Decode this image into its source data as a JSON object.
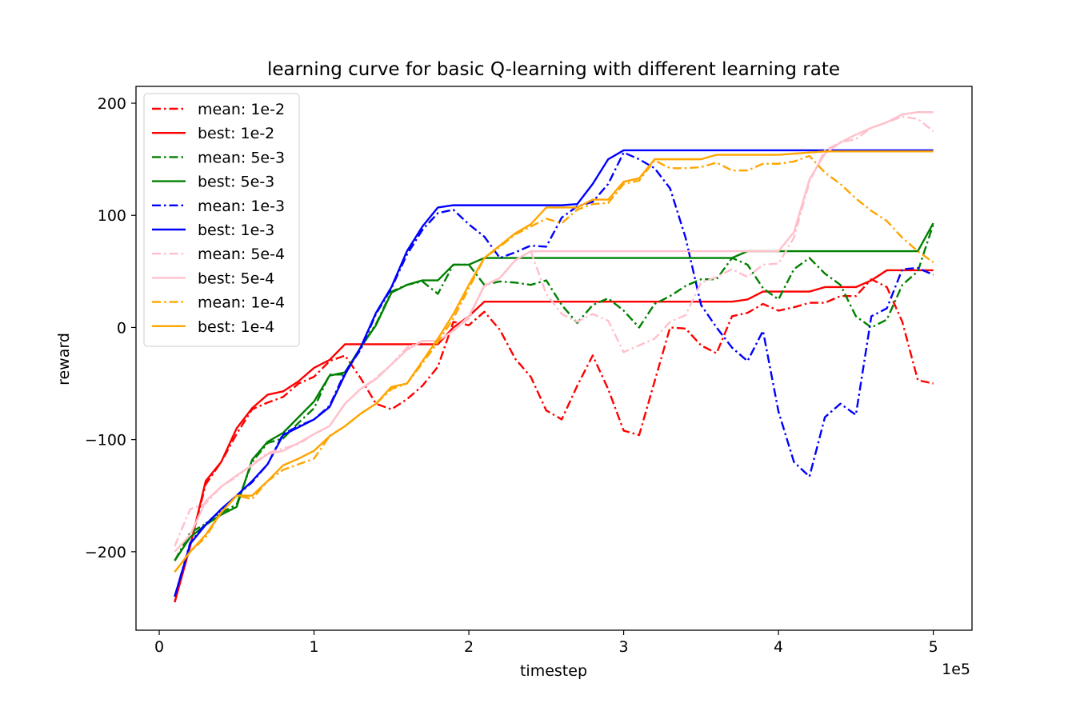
{
  "chart_data": {
    "type": "line",
    "title": "learning curve for basic Q-learning with different learning rate",
    "xlabel": "timestep",
    "ylabel": "reward",
    "x_offset_label": "1e5",
    "xlim": [
      -0.15,
      5.25
    ],
    "ylim": [
      -270,
      215
    ],
    "x_ticks": [
      0,
      1,
      2,
      3,
      4,
      5
    ],
    "x_tick_labels": [
      "0",
      "1",
      "2",
      "3",
      "4",
      "5"
    ],
    "y_ticks": [
      -200,
      -100,
      0,
      100,
      200
    ],
    "y_tick_labels": [
      "−200",
      "−100",
      "0",
      "100",
      "200"
    ],
    "grid": false,
    "legend_position": "upper-left",
    "x": [
      0.1,
      0.2,
      0.3,
      0.4,
      0.5,
      0.6,
      0.7,
      0.8,
      0.9,
      1.0,
      1.1,
      1.2,
      1.3,
      1.4,
      1.5,
      1.6,
      1.7,
      1.8,
      1.9,
      2.0,
      2.1,
      2.2,
      2.3,
      2.4,
      2.5,
      2.6,
      2.7,
      2.8,
      2.9,
      3.0,
      3.1,
      3.2,
      3.3,
      3.4,
      3.5,
      3.6,
      3.7,
      3.8,
      3.9,
      4.0,
      4.1,
      4.2,
      4.3,
      4.4,
      4.5,
      4.6,
      4.7,
      4.8,
      4.9,
      5.0
    ],
    "series": [
      {
        "name": "mean: 1e-2",
        "color": "#ff0000",
        "dash": "dashdot",
        "values": [
          -245,
          -195,
          -140,
          -120,
          -95,
          -73,
          -67,
          -62,
          -50,
          -44,
          -30,
          -25,
          -45,
          -68,
          -73,
          -64,
          -52,
          -35,
          5,
          2,
          14,
          -2,
          -28,
          -44,
          -74,
          -82,
          -52,
          -25,
          -55,
          -92,
          -96,
          -48,
          0,
          -1,
          -16,
          -23,
          10,
          13,
          21,
          15,
          18,
          22,
          22,
          28,
          28,
          43,
          36,
          5,
          -47,
          -50
        ]
      },
      {
        "name": "best: 1e-2",
        "color": "#ff0000",
        "dash": "solid",
        "values": [
          -245,
          -195,
          -137,
          -120,
          -90,
          -72,
          -60,
          -57,
          -48,
          -36,
          -29,
          -15,
          -15,
          -15,
          -15,
          -15,
          -15,
          -15,
          0,
          10,
          23,
          23,
          23,
          23,
          23,
          23,
          23,
          23,
          23,
          23,
          23,
          23,
          23,
          23,
          23,
          23,
          23,
          25,
          32,
          32,
          32,
          32,
          36,
          36,
          36,
          42,
          51,
          51,
          51,
          51
        ]
      },
      {
        "name": "mean: 5e-3",
        "color": "#008000",
        "dash": "dashdot",
        "values": [
          -208,
          -183,
          -175,
          -165,
          -158,
          -120,
          -103,
          -99,
          -85,
          -72,
          -42,
          -42,
          -18,
          3,
          32,
          38,
          41,
          30,
          56,
          56,
          38,
          41,
          40,
          38,
          42,
          20,
          4,
          20,
          26,
          15,
          0,
          21,
          28,
          37,
          43,
          43,
          62,
          56,
          35,
          25,
          52,
          62,
          48,
          38,
          10,
          0,
          7,
          38,
          50,
          92
        ]
      },
      {
        "name": "best: 5e-3",
        "color": "#008000",
        "dash": "solid",
        "values": [
          -208,
          -187,
          -176,
          -167,
          -160,
          -118,
          -102,
          -94,
          -80,
          -66,
          -43,
          -40,
          -18,
          2,
          31,
          38,
          42,
          42,
          56,
          56,
          62,
          62,
          62,
          62,
          62,
          62,
          62,
          62,
          62,
          62,
          62,
          62,
          62,
          62,
          62,
          62,
          62,
          68,
          68,
          68,
          68,
          68,
          68,
          68,
          68,
          68,
          68,
          68,
          68,
          93
        ]
      },
      {
        "name": "mean: 1e-3",
        "color": "#0000ff",
        "dash": "dashdot",
        "values": [
          -240,
          -192,
          -175,
          -163,
          -150,
          -138,
          -122,
          -95,
          -88,
          -82,
          -70,
          -40,
          -20,
          12,
          35,
          65,
          87,
          102,
          105,
          92,
          81,
          62,
          67,
          73,
          72,
          98,
          108,
          112,
          128,
          156,
          150,
          142,
          124,
          80,
          20,
          0,
          -18,
          -30,
          -3,
          -75,
          -120,
          -133,
          -80,
          -68,
          -78,
          10,
          17,
          52,
          53,
          47
        ]
      },
      {
        "name": "best: 1e-3",
        "color": "#0000ff",
        "dash": "solid",
        "values": [
          -240,
          -193,
          -176,
          -162,
          -150,
          -137,
          -122,
          -96,
          -89,
          -82,
          -71,
          -42,
          -18,
          13,
          36,
          68,
          90,
          107,
          109,
          109,
          109,
          109,
          109,
          109,
          109,
          109,
          110,
          128,
          150,
          158,
          158,
          158,
          158,
          158,
          158,
          158,
          158,
          158,
          158,
          158,
          158,
          158,
          158,
          158,
          158,
          158,
          158,
          158,
          158,
          158
        ]
      },
      {
        "name": "mean: 5e-4",
        "color": "#ffc0cb",
        "dash": "dashdot",
        "values": [
          -195,
          -162,
          -157,
          -142,
          -133,
          -122,
          -112,
          -108,
          -104,
          -95,
          -88,
          -68,
          -55,
          -45,
          -33,
          -18,
          -12,
          -12,
          -3,
          8,
          38,
          44,
          60,
          68,
          30,
          12,
          5,
          12,
          6,
          -22,
          -16,
          -10,
          5,
          11,
          40,
          45,
          52,
          45,
          56,
          57,
          80,
          130,
          158,
          165,
          168,
          178,
          183,
          188,
          186,
          175
        ]
      },
      {
        "name": "best: 5e-4",
        "color": "#ffc0cb",
        "dash": "solid",
        "values": [
          -200,
          -185,
          -155,
          -142,
          -132,
          -123,
          -113,
          -110,
          -103,
          -95,
          -88,
          -68,
          -55,
          -46,
          -33,
          -20,
          -12,
          -12,
          -3,
          10,
          37,
          44,
          60,
          68,
          68,
          68,
          68,
          68,
          68,
          68,
          68,
          68,
          68,
          68,
          68,
          68,
          68,
          68,
          68,
          68,
          85,
          132,
          155,
          165,
          172,
          178,
          183,
          190,
          192,
          192
        ]
      },
      {
        "name": "mean: 1e-4",
        "color": "#ffa500",
        "dash": "dashdot",
        "values": [
          -218,
          -200,
          -187,
          -165,
          -150,
          -153,
          -137,
          -127,
          -122,
          -117,
          -97,
          -88,
          -77,
          -68,
          -55,
          -50,
          -32,
          -13,
          8,
          35,
          62,
          72,
          83,
          90,
          97,
          93,
          105,
          110,
          111,
          128,
          131,
          149,
          142,
          142,
          143,
          147,
          140,
          140,
          146,
          146,
          148,
          153,
          138,
          128,
          115,
          104,
          95,
          80,
          68,
          58
        ]
      },
      {
        "name": "best: 1e-4",
        "color": "#ffa500",
        "dash": "solid",
        "values": [
          -218,
          -200,
          -185,
          -165,
          -150,
          -150,
          -137,
          -123,
          -117,
          -110,
          -97,
          -88,
          -77,
          -68,
          -53,
          -50,
          -30,
          -10,
          12,
          38,
          62,
          73,
          84,
          92,
          107,
          107,
          107,
          114,
          114,
          130,
          133,
          150,
          150,
          150,
          150,
          154,
          154,
          154,
          154,
          154,
          155,
          156,
          157,
          157,
          157,
          157,
          157,
          157,
          157,
          157
        ]
      }
    ]
  }
}
